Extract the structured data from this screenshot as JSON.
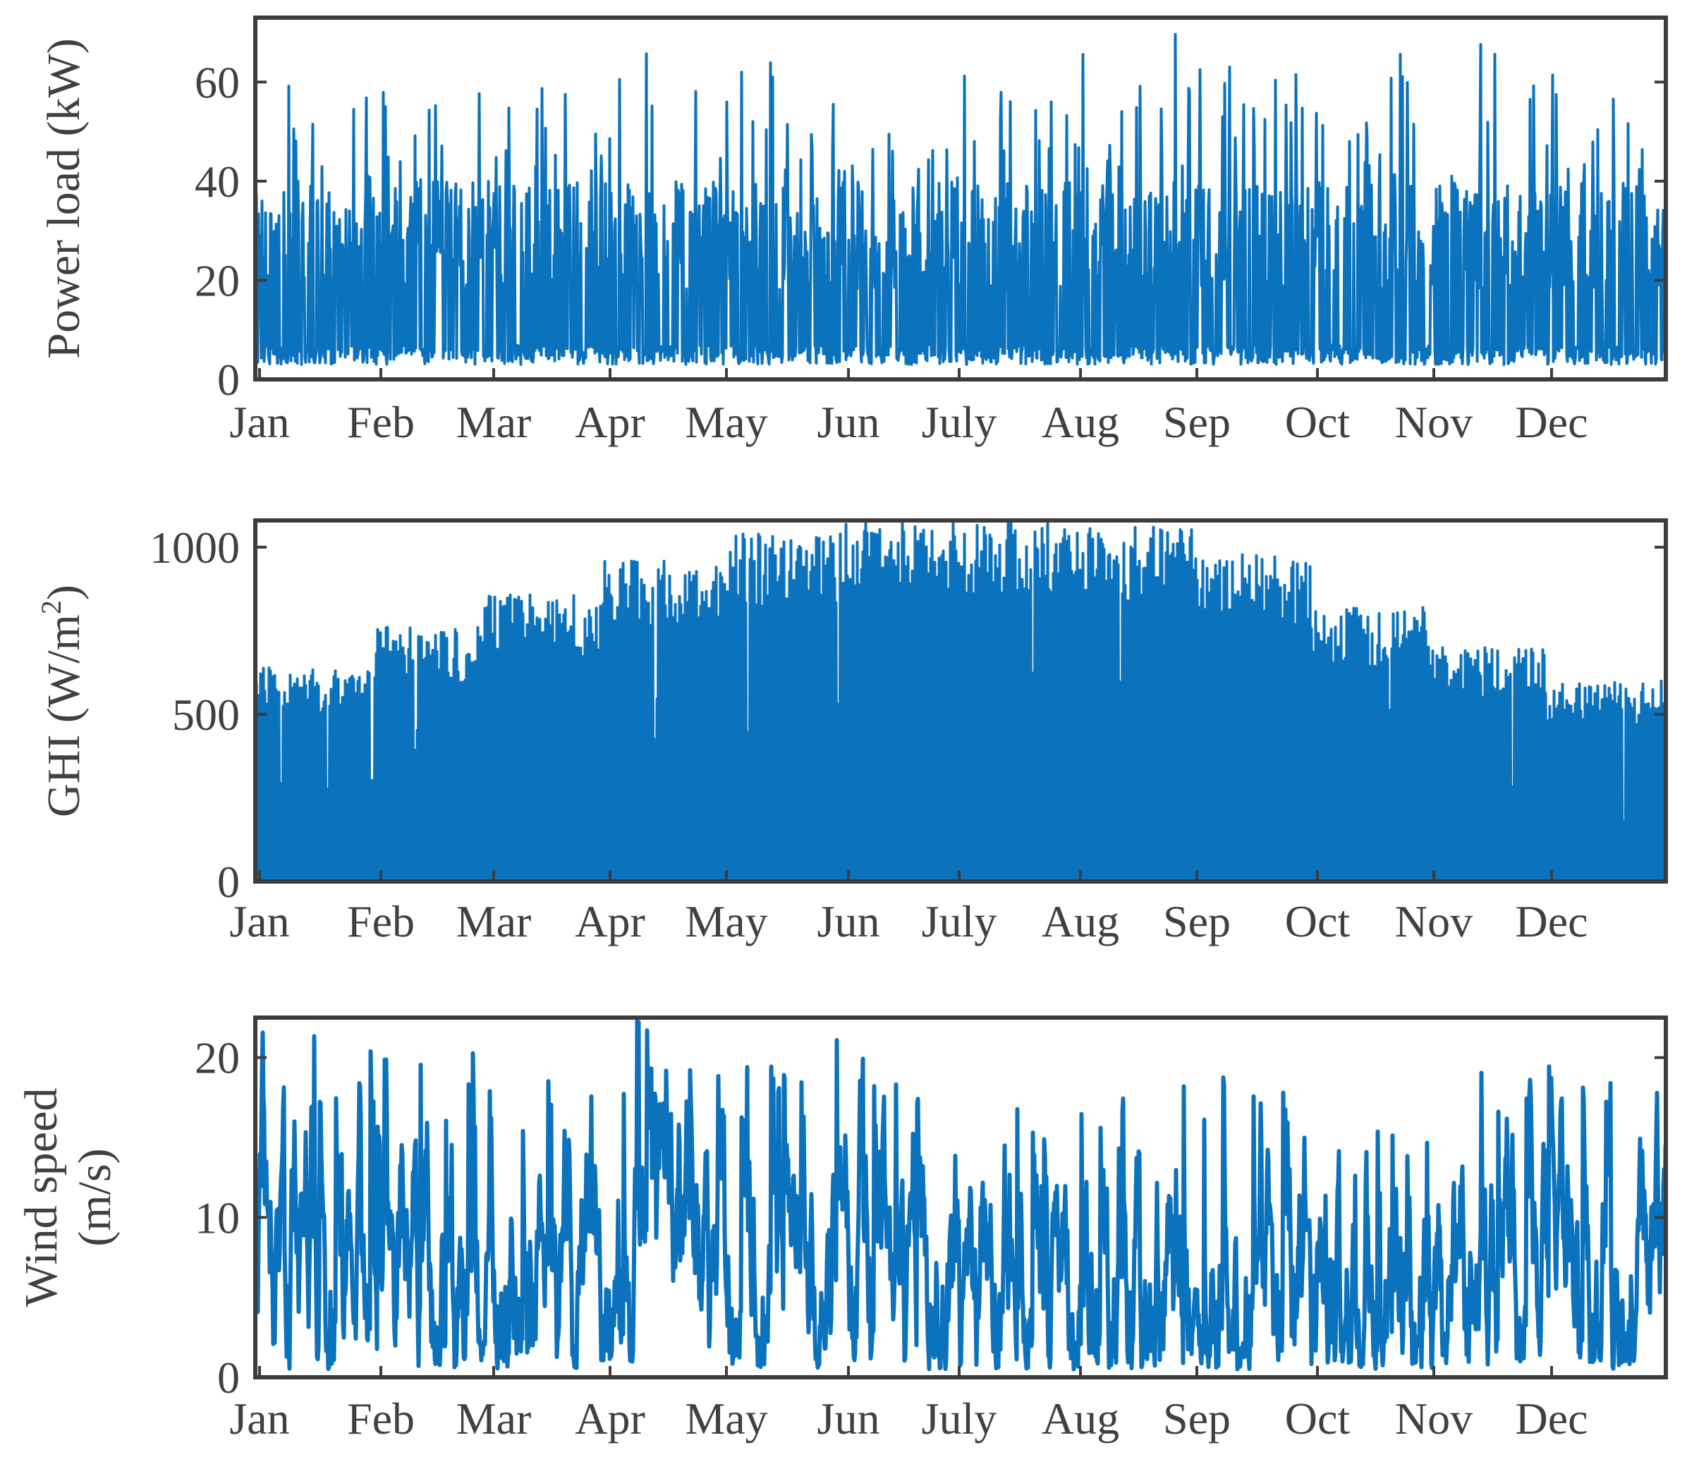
{
  "chart_data": [
    {
      "type": "line",
      "title": "",
      "xlabel": "",
      "ylabel": "Power load (kW)",
      "x_tick_labels": [
        "Jan",
        "Feb",
        "Mar",
        "Apr",
        "May",
        "Jun",
        "July",
        "Aug",
        "Sep",
        "Oct",
        "Nov",
        "Dec"
      ],
      "y_ticks": [
        0,
        20,
        40,
        60
      ],
      "ylim": [
        0,
        73
      ],
      "xlim_months": [
        0,
        12
      ],
      "grid": false,
      "series": [
        {
          "color": "#0b72bd",
          "resolution": "hourly, full year",
          "min": 0,
          "max": 73,
          "typical_low": 3,
          "typical_envelope": 36,
          "monthly_peak": [
            61,
            59,
            59,
            67,
            68,
            57,
            63,
            70,
            65,
            66,
            73,
            62
          ]
        }
      ]
    },
    {
      "type": "line",
      "title": "",
      "xlabel": "",
      "ylabel": "GHI (W/m²)",
      "ylabel_parts": {
        "base": "GHI (W/m",
        "sup": "2",
        "end": ")"
      },
      "x_tick_labels": [
        "Jan",
        "Feb",
        "Mar",
        "Apr",
        "May",
        "Jun",
        "July",
        "Aug",
        "Sep",
        "Oct",
        "Nov",
        "Dec"
      ],
      "y_ticks": [
        0,
        500,
        1000
      ],
      "y_tick_labels": [
        "0",
        "500",
        "1000"
      ],
      "ylim": [
        0,
        1080
      ],
      "xlim_months": [
        0,
        12
      ],
      "grid": false,
      "series": [
        {
          "color": "#0b72bd",
          "resolution": "hourly, full year",
          "min": 0,
          "max": 1080,
          "monthly_peak": [
            640,
            760,
            860,
            960,
            1040,
            1080,
            1080,
            1060,
            980,
            820,
            700,
            600
          ]
        }
      ]
    },
    {
      "type": "line",
      "title": "",
      "xlabel": "",
      "ylabel": [
        "Wind speed",
        "(m/s)"
      ],
      "x_tick_labels": [
        "Jan",
        "Feb",
        "Mar",
        "Apr",
        "May",
        "Jun",
        "July",
        "Aug",
        "Sep",
        "Oct",
        "Nov",
        "Dec"
      ],
      "y_ticks": [
        0,
        10,
        20
      ],
      "ylim": [
        0,
        22.5
      ],
      "xlim_months": [
        0,
        12
      ],
      "grid": false,
      "series": [
        {
          "color": "#0b72bd",
          "resolution": "hourly, full year",
          "min": 0,
          "max": 22.5,
          "monthly_peak": [
            21.8,
            20.3,
            19.0,
            22.5,
            21.5,
            21.3,
            17.3,
            18.6,
            19.5,
            15.5,
            21.8,
            20.8
          ]
        }
      ]
    }
  ]
}
